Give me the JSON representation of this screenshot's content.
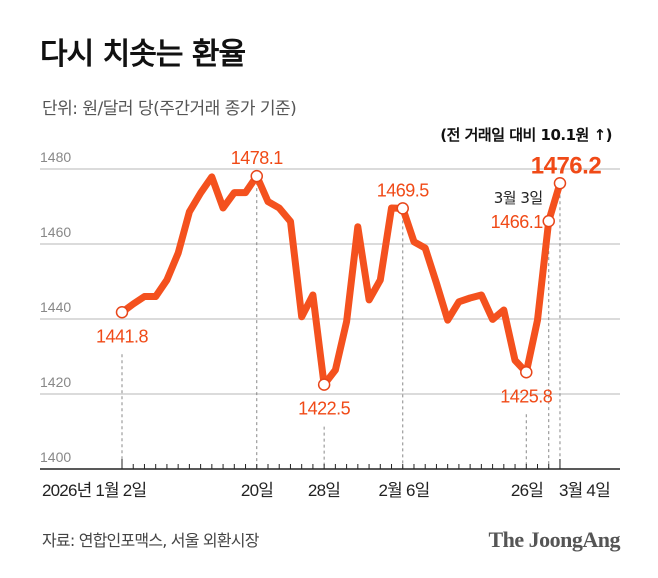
{
  "title": "다시 치솟는 환율",
  "subtitle": "단위: 원/달러 당(주간거래 종가 기준)",
  "note": "(전 거래일 대비 10.1원 ↑)",
  "source": "자료: 연합인포맥스, 서울 외환시장",
  "logo": "The JoongAng",
  "chart_data": {
    "type": "line",
    "title": "다시 치솟는 환율",
    "ylabel": "",
    "xlabel": "",
    "ylim": [
      1400,
      1480
    ],
    "yticks": [
      "1400",
      "1420",
      "1440",
      "1460",
      "1480"
    ],
    "grid": true,
    "color": "#f4511e",
    "x": [
      "2026-01-02",
      "2026-01-05",
      "2026-01-06",
      "2026-01-07",
      "2026-01-08",
      "2026-01-09",
      "2026-01-12",
      "2026-01-13",
      "2026-01-14",
      "2026-01-15",
      "2026-01-16",
      "2026-01-19",
      "2026-01-20",
      "2026-01-21",
      "2026-01-22",
      "2026-01-23",
      "2026-01-26",
      "2026-01-27",
      "2026-01-28",
      "2026-01-29",
      "2026-01-30",
      "2026-02-02",
      "2026-02-03",
      "2026-02-04",
      "2026-02-05",
      "2026-02-06",
      "2026-02-09",
      "2026-02-10",
      "2026-02-11",
      "2026-02-12",
      "2026-02-13",
      "2026-02-19",
      "2026-02-20",
      "2026-02-23",
      "2026-02-24",
      "2026-02-25",
      "2026-02-26",
      "2026-02-27",
      "2026-03-03",
      "2026-03-04"
    ],
    "values": [
      1441.8,
      1444.0,
      1446.0,
      1446.0,
      1450.4,
      1457.6,
      1468.6,
      1473.6,
      1477.9,
      1469.6,
      1473.7,
      1473.7,
      1478.1,
      1471.3,
      1469.6,
      1466.0,
      1440.6,
      1446.4,
      1422.5,
      1426.4,
      1439.3,
      1464.6,
      1445.1,
      1450.4,
      1469.6,
      1469.5,
      1460.6,
      1458.9,
      1449.6,
      1439.7,
      1444.6,
      1445.6,
      1446.4,
      1439.9,
      1442.4,
      1429.0,
      1425.8,
      1439.7,
      1466.1,
      1476.2
    ],
    "xtick_labels": [
      {
        "index": 0,
        "label": "2026년 1월 2일"
      },
      {
        "index": 12,
        "label": "20일"
      },
      {
        "index": 18,
        "label": "28일"
      },
      {
        "index": 25,
        "label": "2월 6일"
      },
      {
        "index": 36,
        "label": "26일"
      },
      {
        "index": 39,
        "label": "3월 4일"
      }
    ],
    "annotations": [
      {
        "index": 0,
        "label": "1441.8",
        "pos": "below"
      },
      {
        "index": 12,
        "label": "1478.1",
        "pos": "above"
      },
      {
        "index": 18,
        "label": "1422.5",
        "pos": "below"
      },
      {
        "index": 25,
        "label": "1469.5",
        "pos": "above"
      },
      {
        "index": 36,
        "label": "1425.8",
        "pos": "below"
      },
      {
        "index": 38,
        "label": "1466.1",
        "pos": "left",
        "date_label": "3월 3일"
      },
      {
        "index": 39,
        "label": "1476.2",
        "pos": "above",
        "emphasis": true
      }
    ]
  }
}
